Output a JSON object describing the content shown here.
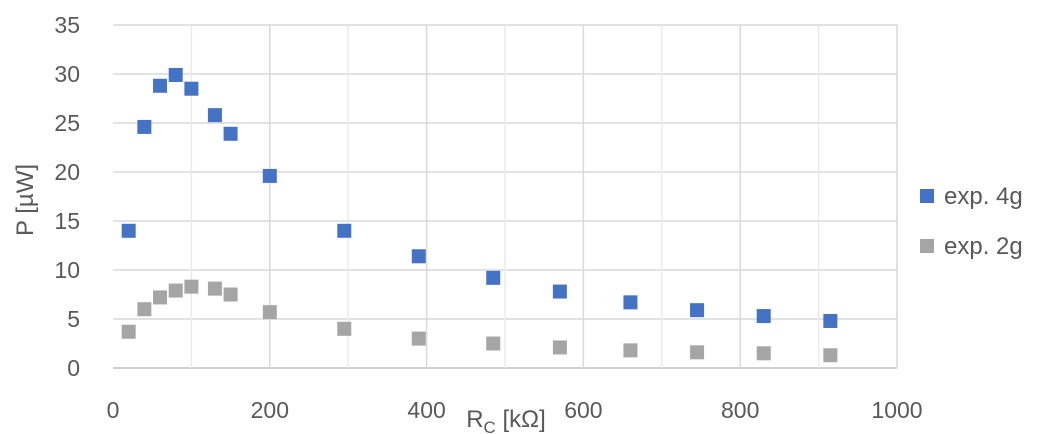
{
  "chart_data": {
    "type": "scatter",
    "title": "",
    "xlabel": "R_C [kΩ]",
    "xlabel_main": "R",
    "xlabel_sub": "C",
    "xlabel_rest": " [kΩ]",
    "ylabel": "P [µW]",
    "xlim": [
      0,
      1000
    ],
    "ylim": [
      0,
      35
    ],
    "x_ticks": [
      0,
      200,
      400,
      600,
      800,
      1000
    ],
    "y_ticks": [
      0,
      5,
      10,
      15,
      20,
      25,
      30,
      35
    ],
    "grid": true,
    "legend_position": "right",
    "series": [
      {
        "name": "exp. 4g",
        "color": "#4472C4",
        "marker": "square",
        "points": [
          {
            "x": 20,
            "y": 14.0
          },
          {
            "x": 40,
            "y": 24.6
          },
          {
            "x": 60,
            "y": 28.8
          },
          {
            "x": 80,
            "y": 29.9
          },
          {
            "x": 100,
            "y": 28.5
          },
          {
            "x": 130,
            "y": 25.8
          },
          {
            "x": 150,
            "y": 23.9
          },
          {
            "x": 200,
            "y": 19.6
          },
          {
            "x": 295,
            "y": 14.0
          },
          {
            "x": 390,
            "y": 11.4
          },
          {
            "x": 485,
            "y": 9.2
          },
          {
            "x": 570,
            "y": 7.8
          },
          {
            "x": 660,
            "y": 6.7
          },
          {
            "x": 745,
            "y": 5.9
          },
          {
            "x": 830,
            "y": 5.3
          },
          {
            "x": 915,
            "y": 4.8
          }
        ]
      },
      {
        "name": "exp. 2g",
        "color": "#A5A5A5",
        "marker": "square",
        "points": [
          {
            "x": 20,
            "y": 3.7
          },
          {
            "x": 40,
            "y": 6.0
          },
          {
            "x": 60,
            "y": 7.2
          },
          {
            "x": 80,
            "y": 7.9
          },
          {
            "x": 100,
            "y": 8.3
          },
          {
            "x": 130,
            "y": 8.1
          },
          {
            "x": 150,
            "y": 7.5
          },
          {
            "x": 200,
            "y": 5.7
          },
          {
            "x": 295,
            "y": 4.0
          },
          {
            "x": 390,
            "y": 3.0
          },
          {
            "x": 485,
            "y": 2.5
          },
          {
            "x": 570,
            "y": 2.1
          },
          {
            "x": 660,
            "y": 1.8
          },
          {
            "x": 745,
            "y": 1.6
          },
          {
            "x": 830,
            "y": 1.5
          },
          {
            "x": 915,
            "y": 1.3
          }
        ]
      }
    ]
  }
}
